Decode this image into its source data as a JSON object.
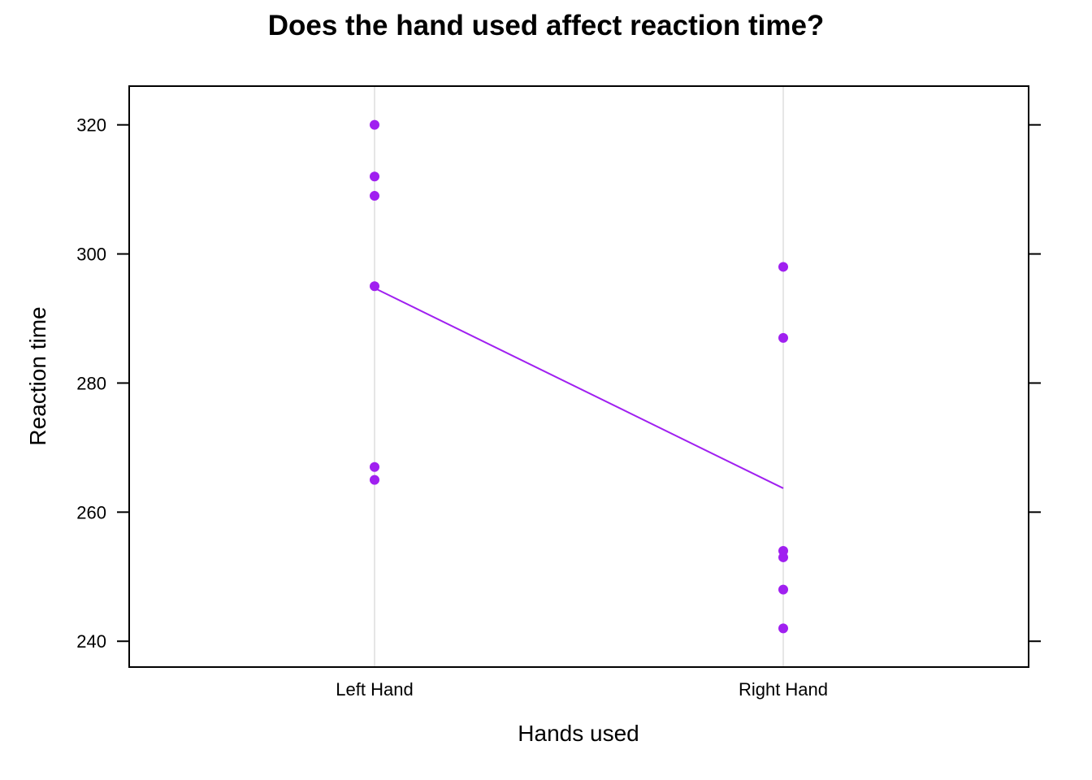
{
  "chart_data": {
    "type": "scatter",
    "title": "Does the hand used affect reaction time?",
    "xlabel": "Hands used",
    "ylabel": "Reaction time",
    "categories": [
      "Left Hand",
      "Right Hand"
    ],
    "ylim": [
      236,
      326
    ],
    "yticks": [
      240,
      260,
      280,
      300,
      320
    ],
    "grid": "vertical reference lines at categories",
    "points": [
      {
        "x": "Left Hand",
        "y": 320
      },
      {
        "x": "Left Hand",
        "y": 312
      },
      {
        "x": "Left Hand",
        "y": 309
      },
      {
        "x": "Left Hand",
        "y": 295
      },
      {
        "x": "Left Hand",
        "y": 267
      },
      {
        "x": "Left Hand",
        "y": 265
      },
      {
        "x": "Right Hand",
        "y": 298
      },
      {
        "x": "Right Hand",
        "y": 287
      },
      {
        "x": "Right Hand",
        "y": 254
      },
      {
        "x": "Right Hand",
        "y": 253
      },
      {
        "x": "Right Hand",
        "y": 248
      },
      {
        "x": "Right Hand",
        "y": 242
      }
    ],
    "mean_line": [
      {
        "x": "Left Hand",
        "y": 294.7
      },
      {
        "x": "Right Hand",
        "y": 263.7
      }
    ],
    "colors": {
      "points": "#A020F0",
      "line": "#A020F0",
      "grid": "#E6E6E6",
      "frame": "#000000"
    }
  }
}
